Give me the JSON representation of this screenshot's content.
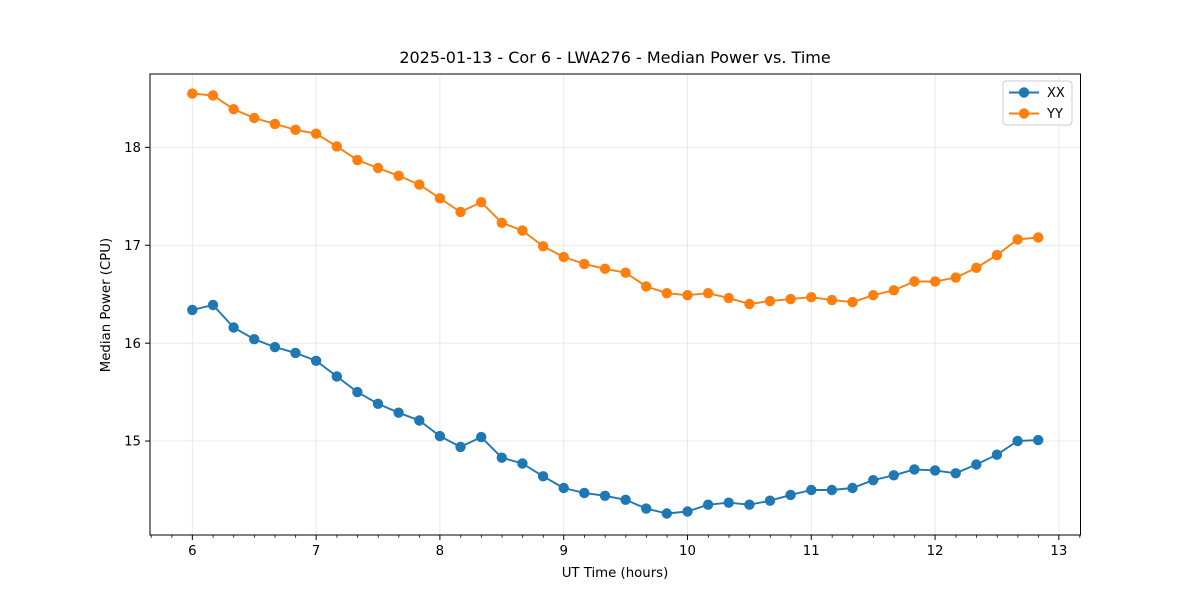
{
  "figure": {
    "background": "#ffffff"
  },
  "chart_data": {
    "type": "line",
    "title": "2025-01-13 - Cor 6 - LWA276 - Median Power vs. Time",
    "xlabel": "UT Time (hours)",
    "ylabel": "Median Power (CPU)",
    "xlim": [
      5.658,
      13.175
    ],
    "ylim": [
      14.04,
      18.75
    ],
    "x_ticks": [
      6,
      7,
      8,
      9,
      10,
      11,
      12,
      13
    ],
    "y_ticks": [
      15,
      16,
      17,
      18
    ],
    "x_minor_step": 0.1667,
    "grid": true,
    "legend_position": "upper right",
    "x": [
      6.0,
      6.1667,
      6.3333,
      6.5,
      6.6667,
      6.8333,
      7.0,
      7.1667,
      7.3333,
      7.5,
      7.6667,
      7.8333,
      8.0,
      8.1667,
      8.3333,
      8.5,
      8.6667,
      8.8333,
      9.0,
      9.1667,
      9.3333,
      9.5,
      9.6667,
      9.8333,
      10.0,
      10.1667,
      10.3333,
      10.5,
      10.6667,
      10.8333,
      11.0,
      11.1667,
      11.3333,
      11.5,
      11.6667,
      11.8333,
      12.0,
      12.1667,
      12.3333,
      12.5,
      12.6667,
      12.8333
    ],
    "series": [
      {
        "name": "XX",
        "color": "#1f77b4",
        "values": [
          16.34,
          16.39,
          16.16,
          16.04,
          15.96,
          15.9,
          15.82,
          15.66,
          15.5,
          15.38,
          15.29,
          15.21,
          15.05,
          14.94,
          15.04,
          14.83,
          14.77,
          14.64,
          14.52,
          14.47,
          14.44,
          14.4,
          14.31,
          14.26,
          14.28,
          14.35,
          14.37,
          14.35,
          14.39,
          14.45,
          14.5,
          14.5,
          14.52,
          14.6,
          14.65,
          14.71,
          14.7,
          14.67,
          14.76,
          14.86,
          15.0,
          15.01
        ]
      },
      {
        "name": "YY",
        "color": "#ff7f0e",
        "values": [
          18.55,
          18.53,
          18.39,
          18.3,
          18.24,
          18.18,
          18.14,
          18.01,
          17.87,
          17.79,
          17.71,
          17.62,
          17.48,
          17.34,
          17.44,
          17.23,
          17.15,
          16.99,
          16.88,
          16.81,
          16.76,
          16.72,
          16.58,
          16.51,
          16.49,
          16.51,
          16.46,
          16.4,
          16.43,
          16.45,
          16.47,
          16.44,
          16.42,
          16.49,
          16.54,
          16.63,
          16.63,
          16.67,
          16.77,
          16.9,
          17.06,
          17.08
        ]
      }
    ]
  },
  "style_colors": {
    "grid": "#cfcfcf",
    "spine": "#000000",
    "marker_stroke": "none",
    "legend_border": "#cccccc",
    "legend_fill": "#ffffff"
  }
}
